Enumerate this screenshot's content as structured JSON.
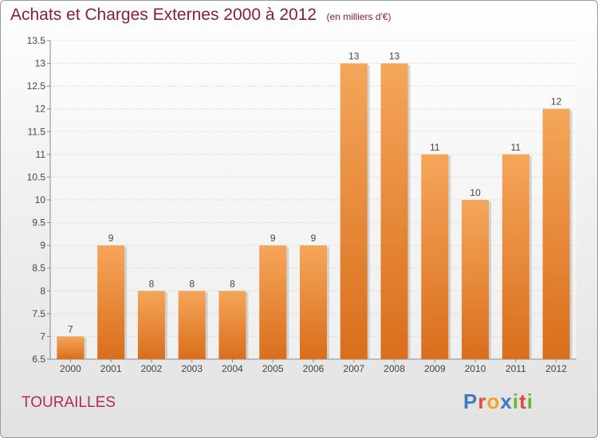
{
  "title": "Achats et Charges Externes 2000 à 2012",
  "subtitle": "(en milliers d'€)",
  "commune": "TOURAILLES",
  "logo": {
    "letters": [
      "P",
      "r",
      "o",
      "x",
      "i",
      "t",
      "i"
    ],
    "colors": [
      "#3a7cc2",
      "#e34b2f",
      "#f0a32a",
      "#3a7cc2",
      "#6db33f",
      "#e34b2f",
      "#6db33f"
    ]
  },
  "colors": {
    "bar_top": "#f5a65a",
    "bar_bottom": "#d96e1c",
    "title": "#8a1d3c",
    "commune": "#b5285a"
  },
  "chart_data": {
    "type": "bar",
    "categories": [
      "2000",
      "2001",
      "2002",
      "2003",
      "2004",
      "2005",
      "2006",
      "2007",
      "2008",
      "2009",
      "2010",
      "2011",
      "2012"
    ],
    "values": [
      7,
      9,
      8,
      8,
      8,
      9,
      9,
      13,
      13,
      11,
      10,
      11,
      12
    ],
    "value_labels": [
      "7",
      "9",
      "8",
      "8",
      "8",
      "9",
      "9",
      "13",
      "13",
      "11",
      "10",
      "11",
      "12"
    ],
    "ylim": [
      6.5,
      13.5
    ],
    "yticks": [
      6.5,
      7,
      7.5,
      8,
      8.5,
      9,
      9.5,
      10,
      10.5,
      11,
      11.5,
      12,
      12.5,
      13,
      13.5
    ],
    "ytick_labels": [
      "6.5",
      "7",
      "7.5",
      "8",
      "8.5",
      "9",
      "9.5",
      "10",
      "10.5",
      "11",
      "11.5",
      "12",
      "12.5",
      "13",
      "13.5"
    ],
    "grid": "horizontal",
    "xlabel": "",
    "ylabel": ""
  }
}
